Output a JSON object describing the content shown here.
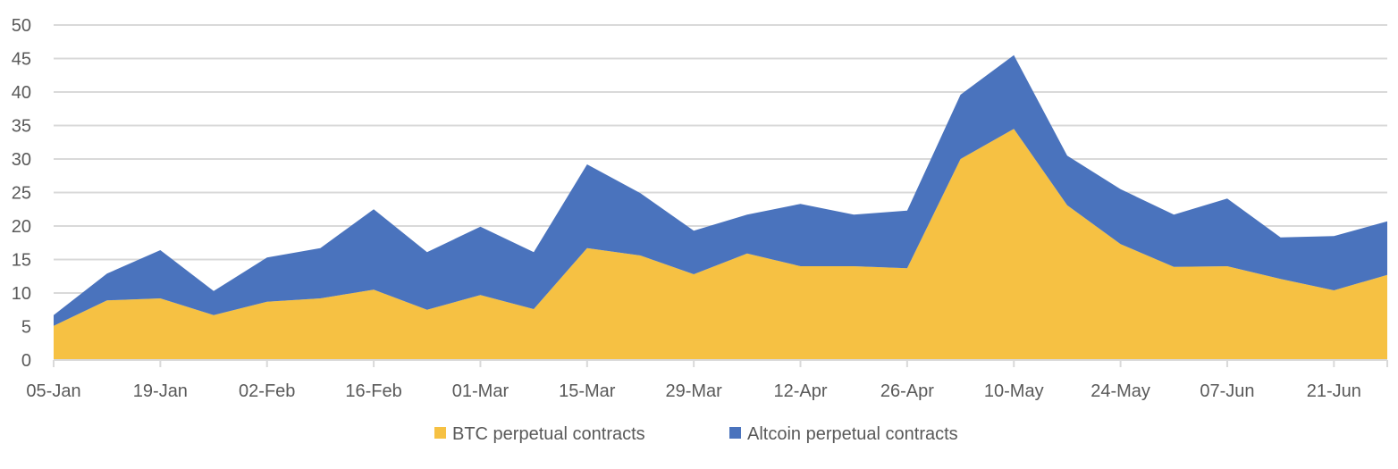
{
  "chart_data": {
    "type": "area",
    "stacked": true,
    "title": "",
    "xlabel": "",
    "ylabel": "",
    "ylim": [
      0,
      50
    ],
    "yticks": [
      0,
      5,
      10,
      15,
      20,
      25,
      30,
      35,
      40,
      45,
      50
    ],
    "grid": true,
    "legend_position": "bottom",
    "x": [
      "05-Jan",
      "12-Jan",
      "19-Jan",
      "26-Jan",
      "02-Feb",
      "09-Feb",
      "16-Feb",
      "23-Feb",
      "01-Mar",
      "08-Mar",
      "15-Mar",
      "22-Mar",
      "29-Mar",
      "05-Apr",
      "12-Apr",
      "19-Apr",
      "26-Apr",
      "03-May",
      "10-May",
      "17-May",
      "24-May",
      "31-May",
      "07-Jun",
      "14-Jun",
      "21-Jun",
      "28-Jun"
    ],
    "xtick_labels": [
      "05-Jan",
      "19-Jan",
      "02-Feb",
      "16-Feb",
      "01-Mar",
      "15-Mar",
      "29-Mar",
      "12-Apr",
      "26-Apr",
      "10-May",
      "24-May",
      "07-Jun",
      "21-Jun"
    ],
    "series": [
      {
        "name": "BTC perpetual contracts",
        "color": "#F6C143",
        "values": [
          5.1,
          8.9,
          9.2,
          6.7,
          8.7,
          9.2,
          10.5,
          7.5,
          9.7,
          7.6,
          16.7,
          15.6,
          12.8,
          15.9,
          14.0,
          14.0,
          13.7,
          30.0,
          34.5,
          23.1,
          17.3,
          13.9,
          14.0,
          12.1,
          10.4,
          12.7
        ]
      },
      {
        "name": "Altcoin perpetual contracts",
        "color": "#4A73BD",
        "values": [
          1.6,
          4.0,
          7.2,
          3.6,
          6.6,
          7.5,
          12.0,
          8.6,
          10.2,
          8.5,
          12.5,
          9.3,
          6.5,
          5.8,
          9.3,
          7.7,
          8.6,
          9.6,
          11.0,
          7.4,
          8.2,
          7.8,
          10.1,
          6.2,
          8.1,
          8.0
        ]
      }
    ]
  }
}
